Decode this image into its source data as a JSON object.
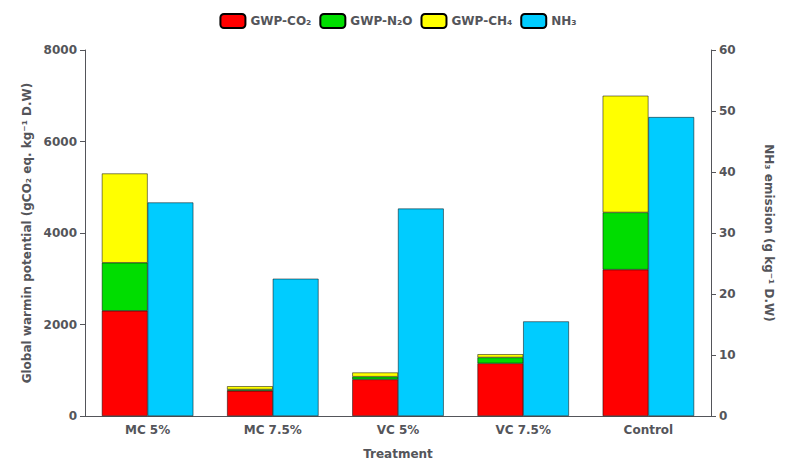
{
  "chart_data": {
    "type": "bar",
    "categories": [
      "MC 5%",
      "MC 7.5%",
      "VC 5%",
      "VC 7.5%",
      "Control"
    ],
    "xlabel": "Treatment",
    "ylabel": "Global warmin potential (gCO₂ eq. kg⁻¹ D.W)",
    "y2label": "NH₃ emission (g kg⁻¹ D.W)",
    "ylim": [
      0,
      8000
    ],
    "yticks": [
      0,
      2000,
      4000,
      6000,
      8000
    ],
    "y2lim": [
      0,
      60
    ],
    "y2ticks": [
      0,
      10,
      20,
      30,
      40,
      50,
      60
    ],
    "stacked": true,
    "grid": false,
    "legend": "top",
    "series": [
      {
        "name": "GWP-CO₂",
        "color": "#FF0000",
        "values": [
          2300,
          550,
          800,
          1150,
          3200
        ]
      },
      {
        "name": "GWP-N₂O",
        "color": "#00DD00",
        "values": [
          1050,
          30,
          60,
          130,
          1250
        ]
      },
      {
        "name": "GWP-CH₄",
        "color": "#FFFF00",
        "values": [
          1950,
          70,
          90,
          70,
          2550
        ]
      },
      {
        "name": "NH₃",
        "color": "#00CCFF",
        "values": [
          35,
          22.5,
          34,
          15.5,
          49
        ],
        "axis": "y2"
      }
    ]
  }
}
